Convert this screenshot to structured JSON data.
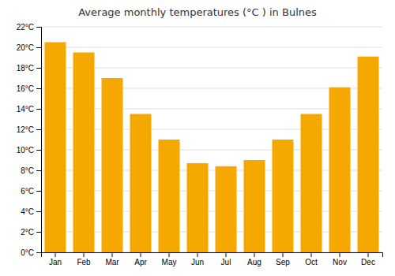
{
  "chart_data": {
    "type": "bar",
    "title": "Average monthly temperatures (°C ) in Bulnes",
    "categories": [
      "Jan",
      "Feb",
      "Mar",
      "Apr",
      "May",
      "Jun",
      "Jul",
      "Aug",
      "Sep",
      "Oct",
      "Nov",
      "Dec"
    ],
    "values": [
      20.5,
      19.5,
      17.0,
      13.5,
      11.0,
      8.7,
      8.4,
      9.0,
      11.0,
      13.5,
      16.1,
      19.1
    ],
    "color": "#F5A800",
    "ylim": [
      0,
      22
    ],
    "yticks": [
      {
        "value": 0,
        "label": "0°C"
      },
      {
        "value": 2,
        "label": "2°C"
      },
      {
        "value": 4,
        "label": "4°C"
      },
      {
        "value": 6,
        "label": "6°C"
      },
      {
        "value": 8,
        "label": "8°C"
      },
      {
        "value": 10,
        "label": "10°C"
      },
      {
        "value": 12,
        "label": "12°C"
      },
      {
        "value": 14,
        "label": "14°C"
      },
      {
        "value": 16,
        "label": "16°C"
      },
      {
        "value": 18,
        "label": "18°C"
      },
      {
        "value": 20,
        "label": "20°C"
      },
      {
        "value": 22,
        "label": "22°C"
      }
    ],
    "grid": true
  }
}
